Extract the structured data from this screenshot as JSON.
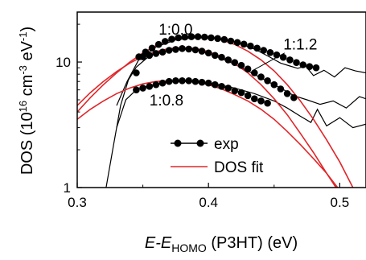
{
  "chart_data": {
    "type": "line",
    "title": "",
    "xlabel": {
      "prefix": "E-E",
      "sub": "HOMO",
      "suffix": " (P3HT) (eV)"
    },
    "ylabel": {
      "prefix": "DOS (10",
      "sup1": "16",
      "mid": " cm",
      "sup2": "-3",
      "mid2": " eV",
      "sup3": "-1",
      "suffix": ")"
    },
    "xlim": [
      0.3,
      0.52
    ],
    "ylim": [
      1,
      25
    ],
    "yscale": "log",
    "xticks": [
      0.3,
      0.4,
      0.5
    ],
    "xtick_labels": [
      "0.3",
      "0.4",
      "0.5"
    ],
    "yticks": [
      1,
      10
    ],
    "ytick_labels": [
      "1",
      "10"
    ],
    "grid": false,
    "legend": {
      "placement": "bottom-center",
      "entries": [
        {
          "label": "exp",
          "style": "black-line-with-dots"
        },
        {
          "label": "DOS fit",
          "style": "red-line"
        }
      ]
    },
    "annotations": [
      {
        "text": "1:0.0",
        "x": 0.362,
        "y": 16.5
      },
      {
        "text": "1:1.2",
        "x": 0.457,
        "y": 12.6
      },
      {
        "text": "1:0.8",
        "x": 0.355,
        "y": 4.5
      }
    ],
    "colors": {
      "exp": "#000000",
      "fit": "#e0262a"
    },
    "series": [
      {
        "role": "exp",
        "x": [
          0.322,
          0.327,
          0.333,
          0.339,
          0.345,
          0.355,
          0.365,
          0.378,
          0.392,
          0.405,
          0.418,
          0.432,
          0.445,
          0.455,
          0.465,
          0.475,
          0.485,
          0.495,
          0.505,
          0.515,
          0.52
        ],
        "y": [
          1.0,
          2.0,
          4.5,
          7.2,
          9.1,
          11.2,
          12.5,
          13.0,
          12.4,
          11.2,
          9.8,
          8.3,
          7.0,
          6.2,
          5.4,
          5.0,
          4.6,
          4.9,
          4.3,
          5.3,
          5.1
        ]
      },
      {
        "role": "exp",
        "x": [
          0.33,
          0.337,
          0.345,
          0.355,
          0.365,
          0.375,
          0.39,
          0.405,
          0.42,
          0.435,
          0.45,
          0.46,
          0.47,
          0.478,
          0.483,
          0.49,
          0.5,
          0.51,
          0.52
        ],
        "y": [
          3.0,
          5.0,
          6.0,
          6.5,
          6.8,
          7.0,
          7.0,
          6.7,
          6.2,
          5.6,
          4.9,
          4.3,
          3.7,
          3.3,
          4.2,
          3.1,
          3.6,
          3.0,
          3.2
        ]
      },
      {
        "role": "exp",
        "x": [
          0.33,
          0.338,
          0.347,
          0.36,
          0.375,
          0.39,
          0.405,
          0.42,
          0.435,
          0.445,
          0.455,
          0.462,
          0.468,
          0.474,
          0.48,
          0.488,
          0.496,
          0.504,
          0.512,
          0.52
        ],
        "y": [
          4.5,
          7.0,
          10.5,
          13.2,
          15.0,
          15.7,
          15.5,
          14.5,
          12.7,
          11.2,
          9.8,
          9.3,
          8.9,
          9.3,
          7.8,
          8.6,
          7.6,
          9.0,
          8.5,
          8.2
        ]
      }
    ],
    "markers": [
      {
        "series": 0,
        "x": [
          0.345,
          0.35,
          0.355,
          0.36,
          0.365,
          0.37,
          0.375,
          0.38,
          0.385,
          0.39,
          0.395,
          0.4,
          0.405,
          0.41,
          0.415,
          0.42,
          0.425,
          0.43,
          0.435,
          0.44,
          0.445,
          0.45,
          0.455,
          0.46,
          0.465
        ],
        "y": [
          8.2,
          11.0,
          11.3,
          11.7,
          12.0,
          12.4,
          12.6,
          12.8,
          12.7,
          12.5,
          12.2,
          11.8,
          11.3,
          10.9,
          10.4,
          9.9,
          9.4,
          8.8,
          8.2,
          7.6,
          7.1,
          6.6,
          6.1,
          5.6,
          5.2
        ]
      },
      {
        "series": 1,
        "x": [
          0.345,
          0.35,
          0.355,
          0.36,
          0.365,
          0.37,
          0.375,
          0.38,
          0.385,
          0.39,
          0.395,
          0.4,
          0.405,
          0.41,
          0.415,
          0.42,
          0.425,
          0.43,
          0.435,
          0.44,
          0.445
        ],
        "y": [
          6.0,
          6.2,
          6.4,
          6.6,
          6.8,
          7.0,
          7.1,
          7.1,
          7.1,
          7.0,
          6.9,
          6.8,
          6.6,
          6.4,
          6.2,
          5.9,
          5.7,
          5.4,
          5.1,
          4.9,
          4.7
        ]
      },
      {
        "series": 2,
        "x": [
          0.347,
          0.352,
          0.357,
          0.362,
          0.367,
          0.372,
          0.377,
          0.382,
          0.387,
          0.392,
          0.397,
          0.402,
          0.407,
          0.412,
          0.417,
          0.422,
          0.427,
          0.432,
          0.437,
          0.442,
          0.447,
          0.452,
          0.457,
          0.462,
          0.467,
          0.472,
          0.477,
          0.482
        ],
        "y": [
          11.0,
          12.0,
          12.9,
          13.8,
          14.6,
          15.2,
          15.6,
          15.8,
          15.9,
          15.9,
          15.8,
          15.6,
          15.4,
          15.1,
          14.7,
          14.3,
          13.9,
          13.4,
          12.9,
          12.4,
          11.9,
          11.4,
          10.9,
          10.4,
          9.9,
          9.5,
          9.2,
          9.0
        ]
      }
    ],
    "fits": [
      {
        "x": [
          0.3,
          0.31,
          0.32,
          0.33,
          0.34,
          0.35,
          0.36,
          0.37,
          0.38,
          0.39,
          0.4,
          0.41,
          0.42,
          0.43,
          0.44,
          0.45,
          0.46,
          0.47,
          0.48,
          0.49,
          0.5,
          0.51,
          0.52
        ],
        "y": [
          4.5,
          5.7,
          7.0,
          8.4,
          9.8,
          11.1,
          12.1,
          12.8,
          13.0,
          12.8,
          12.1,
          11.0,
          9.7,
          8.2,
          6.6,
          5.1,
          3.8,
          2.7,
          1.9,
          1.3,
          0.9,
          0.6,
          0.4
        ]
      },
      {
        "x": [
          0.3,
          0.31,
          0.32,
          0.33,
          0.34,
          0.35,
          0.36,
          0.37,
          0.38,
          0.39,
          0.4,
          0.41,
          0.42,
          0.43,
          0.44,
          0.45,
          0.46,
          0.47,
          0.48,
          0.49,
          0.5,
          0.51,
          0.52
        ],
        "y": [
          3.5,
          4.2,
          4.9,
          5.6,
          6.2,
          6.7,
          7.0,
          7.1,
          7.1,
          6.9,
          6.6,
          6.1,
          5.5,
          4.9,
          4.2,
          3.5,
          2.8,
          2.2,
          1.7,
          1.3,
          0.95,
          0.7,
          0.5
        ]
      },
      {
        "x": [
          0.3,
          0.31,
          0.32,
          0.33,
          0.34,
          0.35,
          0.36,
          0.37,
          0.38,
          0.39,
          0.4,
          0.41,
          0.42,
          0.43,
          0.44,
          0.45,
          0.46,
          0.47,
          0.48,
          0.49,
          0.5,
          0.51,
          0.52
        ],
        "y": [
          4.0,
          5.2,
          6.6,
          8.2,
          10.0,
          11.8,
          13.5,
          14.8,
          15.7,
          16.0,
          15.8,
          15.0,
          13.8,
          12.2,
          10.4,
          8.5,
          6.6,
          4.9,
          3.5,
          2.4,
          1.6,
          1.0,
          0.6
        ]
      }
    ]
  }
}
